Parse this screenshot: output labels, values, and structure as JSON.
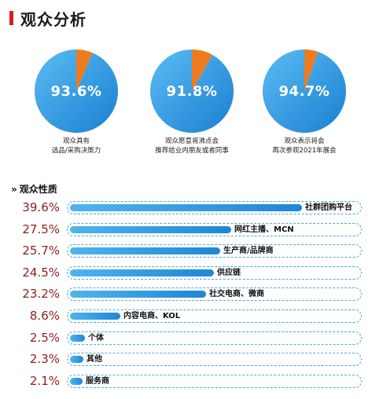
{
  "header": {
    "title": "观众分析"
  },
  "colors": {
    "pie_main": "#2596e0",
    "pie_slice": "#ee7b1d",
    "accent": "#d81e1e",
    "bar": "#2a8fdc",
    "pct_text": "#8b1d1d"
  },
  "chart_data": [
    {
      "type": "pie",
      "slices": [
        {
          "value": 93.6,
          "label": "93.6%"
        },
        {
          "value": 6.4
        }
      ],
      "caption": [
        "观众具有",
        "选品/采购决策力"
      ]
    },
    {
      "type": "pie",
      "slices": [
        {
          "value": 91.8,
          "label": "91.8%"
        },
        {
          "value": 8.2
        }
      ],
      "caption": [
        "观众愿意将沸点会",
        "推荐给业内朋友或者同事"
      ]
    },
    {
      "type": "pie",
      "slices": [
        {
          "value": 94.7,
          "label": "94.7%"
        },
        {
          "value": 5.3
        }
      ],
      "caption": [
        "观众表示将会",
        "再次参观2021年展会"
      ]
    },
    {
      "type": "bar",
      "orientation": "horizontal",
      "title": "观众性质",
      "categories": [
        "社群团购平台",
        "网红主播、MCN",
        "生产商/品牌商",
        "供应链",
        "社交电商、微商",
        "内容电商、KOL",
        "个体",
        "其他",
        "服务商"
      ],
      "values": [
        39.6,
        27.5,
        25.7,
        24.5,
        23.2,
        8.6,
        2.5,
        2.3,
        2.1
      ],
      "value_labels": [
        "39.6%",
        "27.5%",
        "25.7%",
        "24.5%",
        "23.2%",
        "8.6%",
        "2.5%",
        "2.3%",
        "2.1%"
      ]
    }
  ]
}
